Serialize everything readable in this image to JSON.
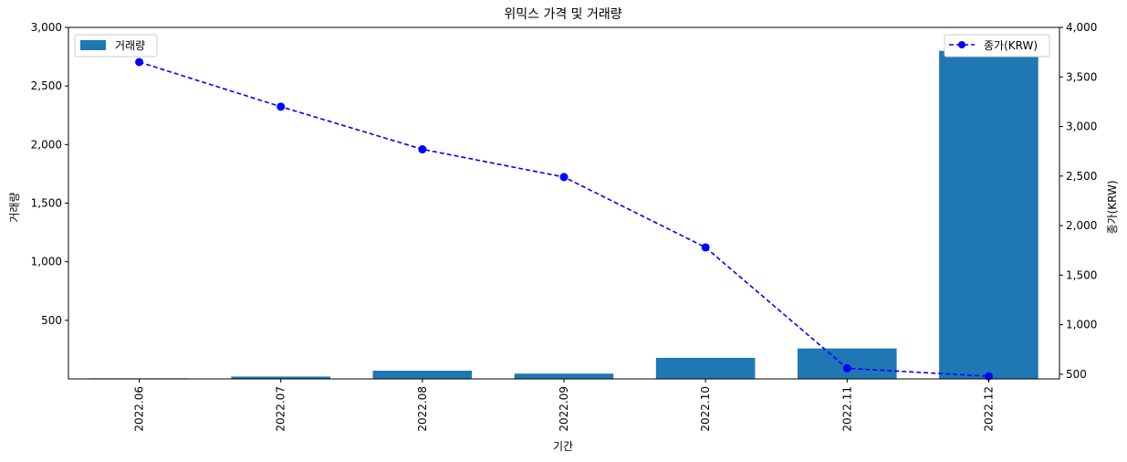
{
  "chart_data": {
    "type": "bar+line",
    "title": "위믹스 가격 및 거래량",
    "xlabel": "기간",
    "categories": [
      "2022.06",
      "2022.07",
      "2022.08",
      "2022.09",
      "2022.10",
      "2022.11",
      "2022.12"
    ],
    "left_axis": {
      "label": "거래량",
      "ylim": [
        0,
        3000
      ],
      "ticks": [
        500,
        1000,
        1500,
        2000,
        2500,
        3000
      ],
      "tick_labels": [
        "500",
        "1,000",
        "1,500",
        "2,000",
        "2,500",
        "3,000"
      ]
    },
    "right_axis": {
      "label": "종가(KRW)",
      "ylim": [
        453,
        4000
      ],
      "ticks": [
        500,
        1000,
        1500,
        2000,
        2500,
        3000,
        3500,
        4000
      ],
      "tick_labels": [
        "500",
        "1,000",
        "1,500",
        "2,000",
        "2,500",
        "3,000",
        "3,500",
        "4,000"
      ]
    },
    "series": [
      {
        "name": "거래량",
        "kind": "bar",
        "axis": "left",
        "color": "#1f77b4",
        "values": [
          5,
          20,
          70,
          45,
          180,
          260,
          2800
        ]
      },
      {
        "name": "종가(KRW)",
        "kind": "line",
        "axis": "right",
        "color": "#0000ff",
        "line_style": "dashed",
        "marker": "circle",
        "values": [
          3650,
          3200,
          2770,
          2490,
          1780,
          560,
          480
        ]
      }
    ],
    "legends": [
      {
        "series": "거래량",
        "position": "top-left"
      },
      {
        "series": "종가(KRW)",
        "position": "top-right"
      }
    ],
    "grid": false
  }
}
